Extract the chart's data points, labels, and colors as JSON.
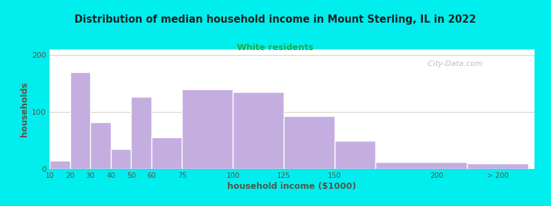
{
  "title": "Distribution of median household income in Mount Sterling, IL in 2022",
  "subtitle": "White residents",
  "xlabel": "household income ($1000)",
  "ylabel": "households",
  "background_outer": "#00EEEE",
  "bar_color": "#C4AEE0",
  "bar_edge_color": "#FFFFFF",
  "title_color": "#222222",
  "subtitle_color": "#22AA44",
  "axis_label_color": "#555544",
  "tick_label_color": "#555544",
  "categories": [
    "10",
    "20",
    "30",
    "40",
    "50",
    "60",
    "75",
    "100",
    "125",
    "150",
    "200",
    "> 200"
  ],
  "values": [
    15,
    170,
    82,
    35,
    127,
    55,
    140,
    135,
    93,
    50,
    12,
    10
  ],
  "ylim": [
    0,
    210
  ],
  "yticks": [
    0,
    100,
    200
  ],
  "watermark": "  City-Data.com"
}
